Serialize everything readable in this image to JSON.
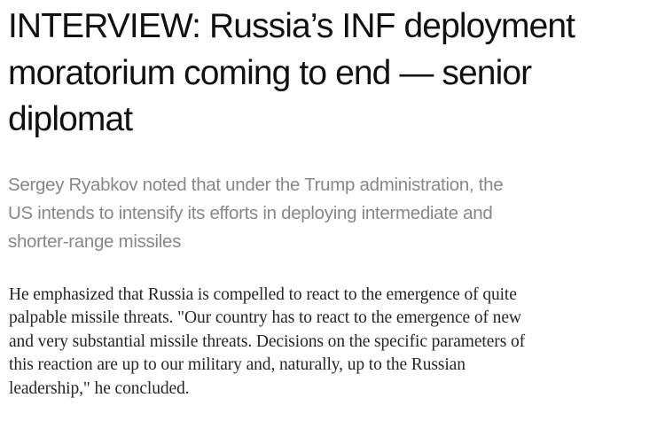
{
  "article": {
    "title_lines": [
      "INTERVIEW: Russia’s INF deployment",
      "moratorium coming to end — senior",
      "diplomat"
    ],
    "subtitle_lines": [
      "Sergey Ryabkov noted that under the Trump administration, the",
      "US intends to intensify its efforts in deploying intermediate and",
      "shorter-range missiles"
    ],
    "body_lines": [
      "He emphasized that Russia is compelled to react to the emergence of quite",
      "palpable missile threats. \"Our country has to react to the emergence of new",
      "and very substantial missile threats. Decisions on the specific parameters of",
      "this reaction are up to our military and, naturally, up to the Russian",
      "leadership,\" he concluded."
    ]
  }
}
